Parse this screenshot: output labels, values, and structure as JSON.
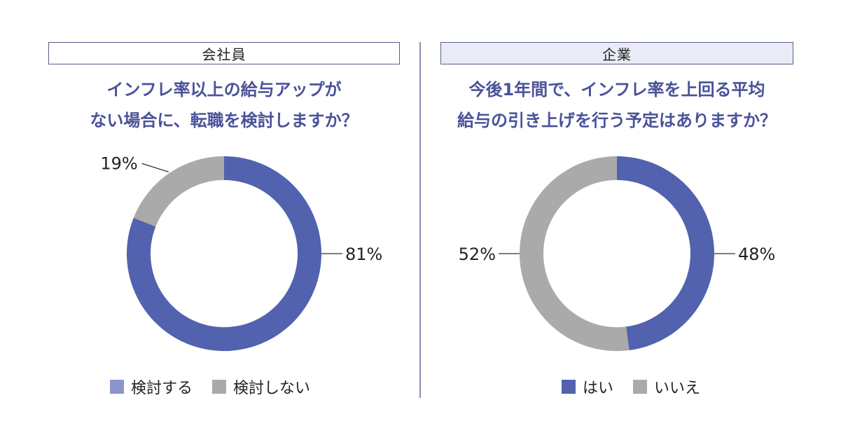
{
  "colors": {
    "primary": "#5262ae",
    "secondary": "#aaaaaa",
    "legend_primary_left": "#8a95cc"
  },
  "chart_data": [
    {
      "type": "pie",
      "subtype": "donut",
      "tag": "会社員",
      "title_lines": [
        "インフレ率以上の給与アップが",
        "ない場合に、転職を検討しますか？"
      ],
      "categories": [
        "検討する",
        "検討しない"
      ],
      "values": [
        81,
        19
      ],
      "labels": [
        "81%",
        "19%"
      ],
      "legend": [
        "検討する",
        "検討しない"
      ],
      "legend_position": "bottom"
    },
    {
      "type": "pie",
      "subtype": "donut",
      "tag": "企業",
      "title_lines": [
        "今後1年間で、インフレ率を上回る平均",
        "給与の引き上げを行う予定はありますか？"
      ],
      "categories": [
        "はい",
        "いいえ"
      ],
      "values": [
        48,
        52
      ],
      "labels": [
        "48%",
        "52%"
      ],
      "legend": [
        "はい",
        "いいえ"
      ],
      "legend_position": "bottom"
    }
  ]
}
